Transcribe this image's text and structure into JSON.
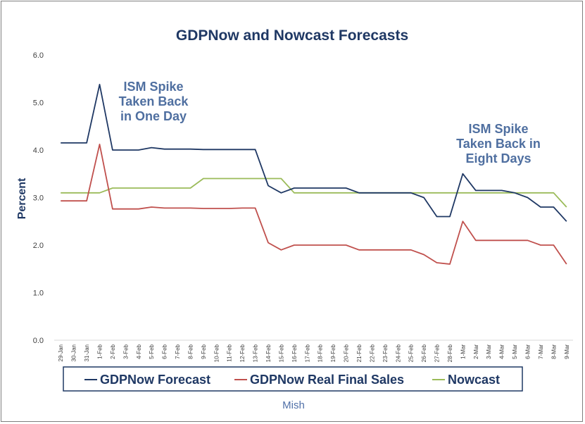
{
  "chart_data": {
    "type": "line",
    "title": "GDPNow and Nowcast Forecasts",
    "ylabel": "Percent",
    "xlabel": "Mish",
    "ylim": [
      0,
      6
    ],
    "yticks": [
      "0.0",
      "1.0",
      "2.0",
      "3.0",
      "4.0",
      "5.0",
      "6.0"
    ],
    "grid": false,
    "legend_placement": "bottom",
    "categories": [
      "29-Jan",
      "30-Jan",
      "31-Jan",
      "1-Feb",
      "2-Feb",
      "3-Feb",
      "4-Feb",
      "5-Feb",
      "6-Feb",
      "7-Feb",
      "8-Feb",
      "9-Feb",
      "10-Feb",
      "11-Feb",
      "12-Feb",
      "13-Feb",
      "14-Feb",
      "15-Feb",
      "16-Feb",
      "17-Feb",
      "18-Feb",
      "19-Feb",
      "20-Feb",
      "21-Feb",
      "22-Feb",
      "23-Feb",
      "24-Feb",
      "25-Feb",
      "26-Feb",
      "27-Feb",
      "28-Feb",
      "1-Mar",
      "2-Mar",
      "3-Mar",
      "4-Mar",
      "5-Mar",
      "6-Mar",
      "7-Mar",
      "8-Mar",
      "9-Mar"
    ],
    "series": [
      {
        "name": "GDPNow Forecast",
        "color": "#1f3864",
        "values": [
          4.15,
          4.15,
          4.15,
          5.38,
          4.0,
          4.0,
          4.0,
          4.05,
          4.02,
          4.02,
          4.02,
          4.01,
          4.01,
          4.01,
          4.01,
          4.01,
          3.25,
          3.1,
          3.2,
          3.2,
          3.2,
          3.2,
          3.2,
          3.1,
          3.1,
          3.1,
          3.1,
          3.1,
          3.0,
          2.6,
          2.6,
          3.5,
          3.15,
          3.15,
          3.15,
          3.1,
          3.0,
          2.8,
          2.8,
          2.5
        ]
      },
      {
        "name": "GDPNow Real Final Sales",
        "color": "#c0504d",
        "values": [
          2.93,
          2.93,
          2.93,
          4.12,
          2.76,
          2.76,
          2.76,
          2.8,
          2.78,
          2.78,
          2.78,
          2.77,
          2.77,
          2.77,
          2.78,
          2.78,
          2.05,
          1.9,
          2.0,
          2.0,
          2.0,
          2.0,
          2.0,
          1.9,
          1.9,
          1.9,
          1.9,
          1.9,
          1.8,
          1.63,
          1.6,
          2.5,
          2.1,
          2.1,
          2.1,
          2.1,
          2.1,
          2.0,
          2.0,
          1.6
        ]
      },
      {
        "name": "Nowcast",
        "color": "#9bbb59",
        "values": [
          3.1,
          3.1,
          3.1,
          3.1,
          3.2,
          3.2,
          3.2,
          3.2,
          3.2,
          3.2,
          3.2,
          3.4,
          3.4,
          3.4,
          3.4,
          3.4,
          3.4,
          3.4,
          3.1,
          3.1,
          3.1,
          3.1,
          3.1,
          3.1,
          3.1,
          3.1,
          3.1,
          3.1,
          3.1,
          3.1,
          3.1,
          3.1,
          3.1,
          3.1,
          3.1,
          3.1,
          3.1,
          3.1,
          3.1,
          2.8
        ]
      }
    ],
    "annotations": [
      {
        "lines": [
          "ISM Spike",
          "Taken Back",
          "in One Day"
        ]
      },
      {
        "lines": [
          "ISM Spike",
          "Taken Back in",
          "Eight Days"
        ]
      }
    ]
  }
}
